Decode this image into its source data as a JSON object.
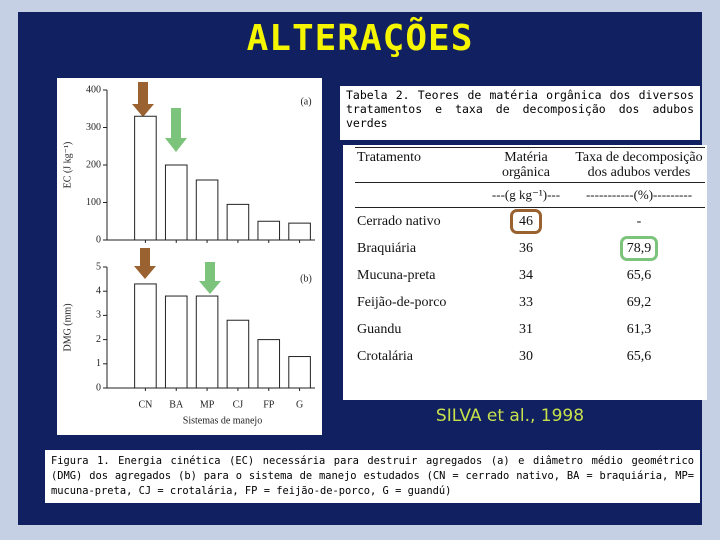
{
  "title": "ALTERAÇÕES",
  "chart_data": [
    {
      "type": "bar",
      "panel": "(a)",
      "ylabel": "EC (J kg⁻¹)",
      "values": [
        330,
        200,
        160,
        95,
        50,
        45
      ],
      "color": "#ffffff",
      "ylim": [
        0,
        400
      ],
      "yticks": [
        0,
        100,
        200,
        300,
        400
      ]
    },
    {
      "type": "bar",
      "panel": "(b)",
      "ylabel": "DMG (mm)",
      "xlabel": "Sistemas de manejo",
      "categories": [
        "CN",
        "BA",
        "MP",
        "CJ",
        "FP",
        "G"
      ],
      "values": [
        4.3,
        3.8,
        3.8,
        2.8,
        2.0,
        1.3
      ],
      "color": "#ffffff",
      "ylim": [
        0,
        5
      ],
      "yticks": [
        0,
        1,
        2,
        3,
        4,
        5
      ]
    }
  ],
  "table_caption": "Tabela 2. Teores de matéria orgânica dos diversos tratamentos e taxa de decomposição dos adubos verdes",
  "table": {
    "header": [
      "Tratamento",
      "Matéria orgânica",
      "Taxa de decomposição dos adubos verdes"
    ],
    "units": [
      "---(g kg⁻¹)---",
      "-----------(%)---------"
    ],
    "rows": [
      [
        "Cerrado nativo",
        46,
        "-"
      ],
      [
        "Braquiária",
        36,
        "78,9"
      ],
      [
        "Mucuna-preta",
        34,
        "65,6"
      ],
      [
        "Feijão-de-porco",
        33,
        "69,2"
      ],
      [
        "Guandu",
        31,
        "61,3"
      ],
      [
        "Crotalária",
        30,
        "65,6"
      ]
    ]
  },
  "citation": "SILVA et al., 1998",
  "figure_caption": "Figura 1. Energia cinética (EC) necessária para destruir agregados (a) e diâmetro médio geométrico (DMG) dos agregados (b) para o sistema de manejo estudados (CN = cerrado nativo, BA = braquiária, MP= mucuna-preta, CJ = crotalária, FP = feijão-de-porco, G = guandú)"
}
